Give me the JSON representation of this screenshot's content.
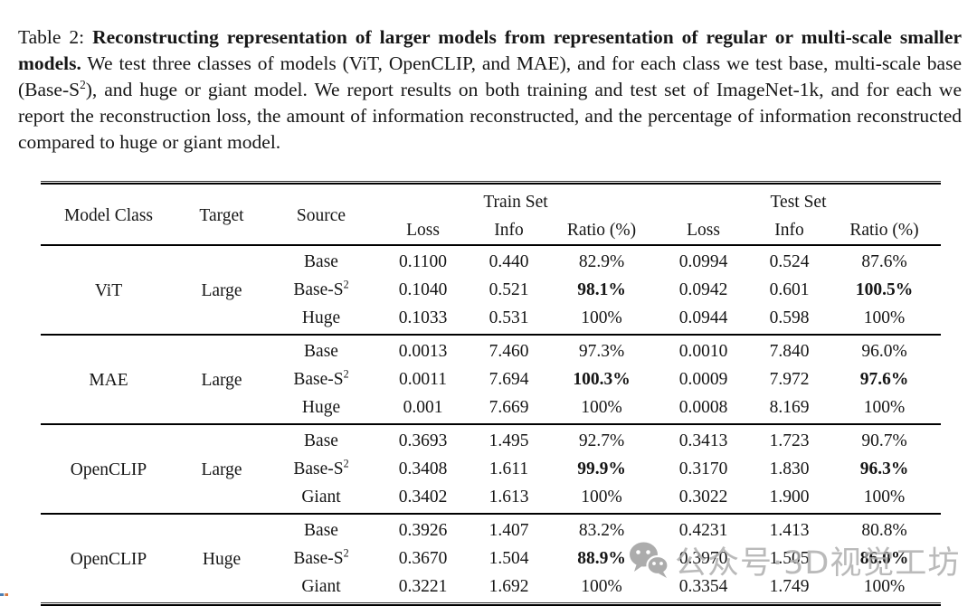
{
  "caption": {
    "label": "Table 2: ",
    "bold_title": "Reconstructing representation of larger models from representation of regular or multi-scale smaller models.",
    "body_before_sup": " We test three classes of models (ViT, OpenCLIP, and MAE), and for each class we test base, multi-scale base (Base-S",
    "sup": "2",
    "body_after_sup": "), and huge or giant model. We report results on both training and test set of ImageNet-1k, and for each we report the reconstruction loss, the amount of information reconstructed, and the percentage of information reconstructed compared to huge or giant model."
  },
  "table": {
    "headers": {
      "model_class": "Model Class",
      "target": "Target",
      "source": "Source",
      "train_set": "Train Set",
      "test_set": "Test Set",
      "loss": "Loss",
      "info": "Info",
      "ratio": "Ratio (%)"
    },
    "groups": [
      {
        "model_class": "ViT",
        "target": "Large",
        "rows": [
          {
            "source": "Base",
            "source_sup": "",
            "train_loss": "0.1100",
            "train_info": "0.440",
            "train_ratio": "82.9%",
            "test_loss": "0.0994",
            "test_info": "0.524",
            "test_ratio": "87.6%",
            "ratio_bold": false
          },
          {
            "source": "Base-S",
            "source_sup": "2",
            "train_loss": "0.1040",
            "train_info": "0.521",
            "train_ratio": "98.1%",
            "test_loss": "0.0942",
            "test_info": "0.601",
            "test_ratio": "100.5%",
            "ratio_bold": true
          },
          {
            "source": "Huge",
            "source_sup": "",
            "train_loss": "0.1033",
            "train_info": "0.531",
            "train_ratio": "100%",
            "test_loss": "0.0944",
            "test_info": "0.598",
            "test_ratio": "100%",
            "ratio_bold": false
          }
        ]
      },
      {
        "model_class": "MAE",
        "target": "Large",
        "rows": [
          {
            "source": "Base",
            "source_sup": "",
            "train_loss": "0.0013",
            "train_info": "7.460",
            "train_ratio": "97.3%",
            "test_loss": "0.0010",
            "test_info": "7.840",
            "test_ratio": "96.0%",
            "ratio_bold": false
          },
          {
            "source": "Base-S",
            "source_sup": "2",
            "train_loss": "0.0011",
            "train_info": "7.694",
            "train_ratio": "100.3%",
            "test_loss": "0.0009",
            "test_info": "7.972",
            "test_ratio": "97.6%",
            "ratio_bold": true
          },
          {
            "source": "Huge",
            "source_sup": "",
            "train_loss": "0.001",
            "train_info": "7.669",
            "train_ratio": "100%",
            "test_loss": "0.0008",
            "test_info": "8.169",
            "test_ratio": "100%",
            "ratio_bold": false
          }
        ]
      },
      {
        "model_class": "OpenCLIP",
        "target": "Large",
        "rows": [
          {
            "source": "Base",
            "source_sup": "",
            "train_loss": "0.3693",
            "train_info": "1.495",
            "train_ratio": "92.7%",
            "test_loss": "0.3413",
            "test_info": "1.723",
            "test_ratio": "90.7%",
            "ratio_bold": false
          },
          {
            "source": "Base-S",
            "source_sup": "2",
            "train_loss": "0.3408",
            "train_info": "1.611",
            "train_ratio": "99.9%",
            "test_loss": "0.3170",
            "test_info": "1.830",
            "test_ratio": "96.3%",
            "ratio_bold": true
          },
          {
            "source": "Giant",
            "source_sup": "",
            "train_loss": "0.3402",
            "train_info": "1.613",
            "train_ratio": "100%",
            "test_loss": "0.3022",
            "test_info": "1.900",
            "test_ratio": "100%",
            "ratio_bold": false
          }
        ]
      },
      {
        "model_class": "OpenCLIP",
        "target": "Huge",
        "rows": [
          {
            "source": "Base",
            "source_sup": "",
            "train_loss": "0.3926",
            "train_info": "1.407",
            "train_ratio": "83.2%",
            "test_loss": "0.4231",
            "test_info": "1.413",
            "test_ratio": "80.8%",
            "ratio_bold": false
          },
          {
            "source": "Base-S",
            "source_sup": "2",
            "train_loss": "0.3670",
            "train_info": "1.504",
            "train_ratio": "88.9%",
            "test_loss": "0.3970",
            "test_info": "1.505",
            "test_ratio": "86.0%",
            "ratio_bold": true
          },
          {
            "source": "Giant",
            "source_sup": "",
            "train_loss": "0.3221",
            "train_info": "1.692",
            "train_ratio": "100%",
            "test_loss": "0.3354",
            "test_info": "1.749",
            "test_ratio": "100%",
            "ratio_bold": false
          }
        ]
      }
    ]
  },
  "watermark": {
    "icon": "wechat-icon",
    "text": "公众号·3D视觉工坊",
    "text_color": "#ababab",
    "icon_color": "#9b9b9b"
  }
}
